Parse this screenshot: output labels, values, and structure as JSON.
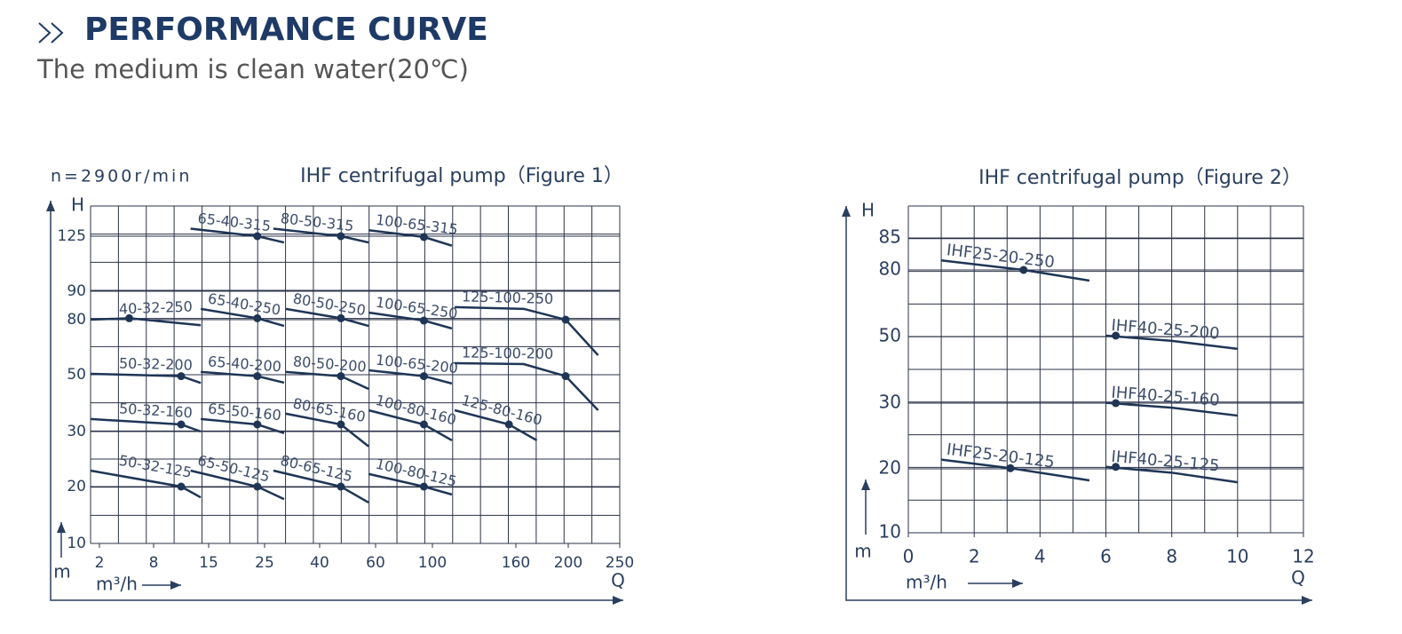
{
  "header": {
    "title": "PERFORMANCE CURVE",
    "subtitle": "The medium is clean water(20℃)"
  },
  "chart_data": [
    {
      "type": "line",
      "title": "IHF centrifugal pump（Figure 1）",
      "annotation": "n=2900r/min",
      "y_label": "H",
      "y_unit": "m",
      "x_unit": "m³/h",
      "x_label": "Q",
      "color": "#1f3556",
      "xlim": [
        1,
        250
      ],
      "xticks": [
        2,
        8,
        15,
        25,
        40,
        60,
        100,
        160,
        200,
        250
      ],
      "ylim": [
        10,
        145
      ],
      "yticks": [
        10,
        20,
        30,
        50,
        80,
        90,
        125
      ],
      "grid": true,
      "series": [
        {
          "name": "65-40-315",
          "x": [
            12.7,
            23.7,
            30.3
          ],
          "values": [
            130,
            125,
            121
          ],
          "point": [
            23.7,
            125
          ]
        },
        {
          "name": "80-50-315",
          "x": [
            27.4,
            47.6,
            57.5
          ],
          "values": [
            130,
            125,
            121
          ],
          "point": [
            47.6,
            125
          ]
        },
        {
          "name": "100-65-315",
          "x": [
            57.5,
            94,
            114
          ],
          "values": [
            129,
            124.5,
            119
          ],
          "point": [
            94,
            124.5
          ]
        },
        {
          "name": "40-32-250",
          "x": [
            1,
            5.3,
            14
          ],
          "values": [
            80,
            80.5,
            77
          ],
          "point": [
            5.3,
            80.5
          ]
        },
        {
          "name": "65-40-250",
          "x": [
            14,
            23.7,
            30.3
          ],
          "values": [
            83.8,
            80.5,
            76.6
          ],
          "point": [
            23.7,
            80.5
          ]
        },
        {
          "name": "80-50-250",
          "x": [
            30.8,
            47.6,
            57.5
          ],
          "values": [
            83.8,
            80.5,
            76.6
          ],
          "point": [
            47.6,
            80.5
          ]
        },
        {
          "name": "100-65-250",
          "x": [
            57.5,
            94,
            114
          ],
          "values": [
            82.5,
            79.5,
            75.2
          ],
          "point": [
            94,
            79.5
          ]
        },
        {
          "name": "125-100-250",
          "x": [
            116,
            166,
            198,
            229
          ],
          "values": [
            84.4,
            83.8,
            80,
            60.6
          ],
          "point": [
            198,
            80
          ]
        },
        {
          "name": "50-32-200",
          "x": [
            1,
            11.5,
            14
          ],
          "values": [
            50.5,
            49.5,
            47.1
          ],
          "point": [
            11.5,
            49.5
          ]
        },
        {
          "name": "65-40-200",
          "x": [
            14,
            23.7,
            30.3
          ],
          "values": [
            51.5,
            49.5,
            47.2
          ],
          "point": [
            23.7,
            49.5
          ]
        },
        {
          "name": "80-50-200",
          "x": [
            30.8,
            47.6,
            57.5
          ],
          "values": [
            51.5,
            49.5,
            45
          ],
          "point": [
            47.6,
            49.5
          ]
        },
        {
          "name": "100-65-200",
          "x": [
            57.5,
            94,
            114
          ],
          "values": [
            52.4,
            49.5,
            46.9
          ],
          "point": [
            94,
            49.5
          ]
        },
        {
          "name": "125-100-200",
          "x": [
            116,
            166,
            198,
            229
          ],
          "values": [
            56.3,
            55.8,
            49.5,
            37.5
          ],
          "point": [
            198,
            49.5
          ]
        },
        {
          "name": "50-32-160",
          "x": [
            1,
            11.5,
            14
          ],
          "values": [
            34.4,
            32.5,
            30
          ],
          "point": [
            11.5,
            32.5
          ]
        },
        {
          "name": "65-50-160",
          "x": [
            14,
            23.7,
            30.3
          ],
          "values": [
            34.4,
            32.5,
            29.7
          ],
          "point": [
            23.7,
            32.5
          ]
        },
        {
          "name": "80-65-160",
          "x": [
            30.8,
            47.6,
            57.5
          ],
          "values": [
            36.3,
            32.5,
            27.3
          ],
          "point": [
            47.6,
            32.5
          ]
        },
        {
          "name": "100-80-160",
          "x": [
            57.5,
            94,
            114
          ],
          "values": [
            37.5,
            32.5,
            28.4
          ],
          "point": [
            94,
            32.5
          ]
        },
        {
          "name": "125-80-160",
          "x": [
            116,
            155,
            176
          ],
          "values": [
            37.5,
            32.5,
            28.4
          ],
          "point": [
            155,
            32.5
          ]
        },
        {
          "name": "50-32-125",
          "x": [
            1,
            11.5,
            14
          ],
          "values": [
            22.9,
            20,
            18.1
          ],
          "point": [
            11.5,
            20
          ]
        },
        {
          "name": "65-50-125",
          "x": [
            12.7,
            23.7,
            30.3
          ],
          "values": [
            22.9,
            20,
            17.8
          ],
          "point": [
            23.7,
            20
          ]
        },
        {
          "name": "80-65-125",
          "x": [
            27.4,
            47.6,
            57.5
          ],
          "values": [
            22.9,
            20,
            17.2
          ],
          "point": [
            47.6,
            20
          ]
        },
        {
          "name": "100-80-125",
          "x": [
            57.5,
            94,
            114
          ],
          "values": [
            22.3,
            20,
            18.6
          ],
          "point": [
            94,
            20
          ]
        }
      ]
    },
    {
      "type": "line",
      "title": "IHF centrifugal pump（Figure 2）",
      "y_label": "H",
      "y_unit": "m",
      "x_unit": "m³/h",
      "x_label": "Q",
      "color": "#1f3556",
      "xlim": [
        0,
        12
      ],
      "xticks": [
        0,
        2,
        4,
        6,
        8,
        10,
        12
      ],
      "ylim": [
        10,
        90
      ],
      "yticks": [
        10,
        20,
        30,
        50,
        80,
        85
      ],
      "grid": true,
      "series": [
        {
          "name": "IHF25-20-250",
          "x": [
            1,
            3.5,
            5.5
          ],
          "values": [
            81.5,
            80,
            75.2
          ],
          "point": [
            3.5,
            80
          ]
        },
        {
          "name": "IHF40-25-200",
          "x": [
            6,
            8,
            10
          ],
          "values": [
            50.4,
            48.7,
            46.3
          ],
          "point": [
            6.3,
            50.4
          ]
        },
        {
          "name": "IHF40-25-160",
          "x": [
            6,
            8,
            10
          ],
          "values": [
            30.1,
            29.3,
            28.1
          ],
          "point": [
            6.3,
            30
          ]
        },
        {
          "name": "IHF25-20-125",
          "x": [
            1,
            3.1,
            5.5
          ],
          "values": [
            21.4,
            20.1,
            18.2
          ],
          "point": [
            3.1,
            20.1
          ]
        },
        {
          "name": "IHF40-25-125",
          "x": [
            6,
            8,
            10
          ],
          "values": [
            20.3,
            19.4,
            17.9
          ],
          "point": [
            6.3,
            20.3
          ]
        }
      ]
    }
  ]
}
